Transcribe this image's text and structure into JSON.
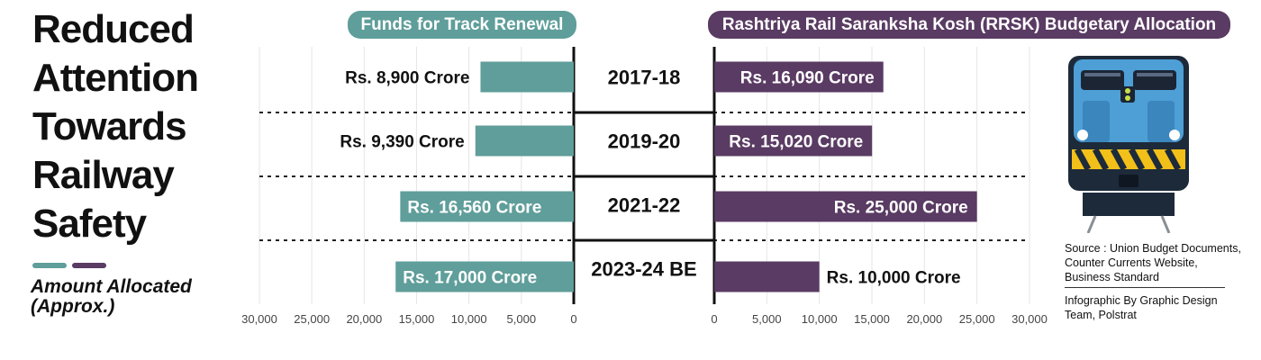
{
  "title_lines": [
    "Reduced",
    "Attention",
    "Towards",
    "Railway",
    "Safety"
  ],
  "legend": {
    "label_lines": [
      "Amount Allocated",
      "(Approx.)"
    ]
  },
  "colors": {
    "teal": "#5f9e9a",
    "purple": "#5a3b63",
    "title_pill_teal": "#5f9e9a",
    "title_pill_purple": "#5a3b63"
  },
  "chart_data": [
    {
      "type": "bar",
      "orientation": "horizontal",
      "direction": "right-to-left",
      "title": "Funds for Track Renewal",
      "categories": [
        "2017-18",
        "2019-20",
        "2021-22",
        "2023-24 BE"
      ],
      "values": [
        8900,
        9390,
        16560,
        17000
      ],
      "data_labels": [
        "Rs. 8,900 Crore",
        "Rs. 9,390 Crore",
        "Rs. 16,560 Crore",
        "Rs. 17,000 Crore"
      ],
      "xlim": [
        0,
        30000
      ],
      "ticks": [
        "30,000",
        "25,000",
        "20,000",
        "15,000",
        "10,000",
        "5,000",
        "0"
      ],
      "grid": true
    },
    {
      "type": "bar",
      "orientation": "horizontal",
      "direction": "left-to-right",
      "title": "Rashtriya Rail Saranksha Kosh (RRSK) Budgetary Allocation",
      "categories": [
        "2017-18",
        "2019-20",
        "2021-22",
        "2023-24 BE"
      ],
      "values": [
        16090,
        15020,
        25000,
        10000
      ],
      "data_labels": [
        "Rs. 16,090 Crore",
        "Rs. 15,020 Crore",
        "Rs. 25,000 Crore",
        "Rs. 10,000 Crore"
      ],
      "xlim": [
        0,
        30000
      ],
      "ticks": [
        "0",
        "5,000",
        "10,000",
        "15,000",
        "20,000",
        "25,000",
        "30,000"
      ],
      "grid": true
    }
  ],
  "source": "Source : Union Budget Documents, Counter Currents Website, Business Standard",
  "credit": "Infographic By Graphic Design Team, Polstrat",
  "train_icon": "locomotive-icon"
}
